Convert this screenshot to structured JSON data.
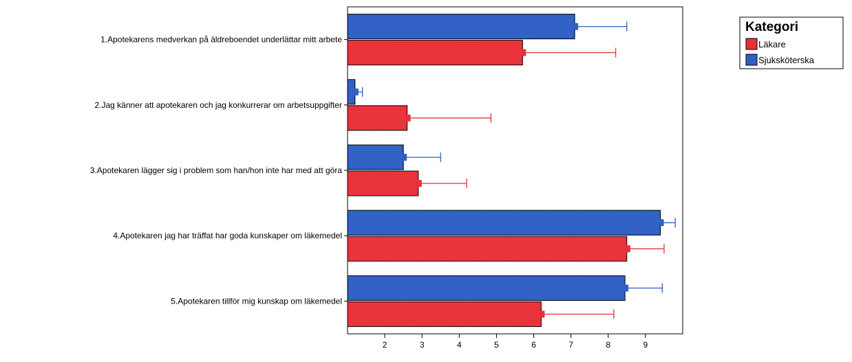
{
  "chart_data": {
    "type": "bar",
    "orientation": "horizontal",
    "categories": [
      "1.Apotekarens medverkan på äldreboendet underlättar mitt arbete",
      "2.Jag känner att apotekaren och jag konkurrerar om arbetsuppgifter",
      "3.Apotekaren lägger sig i problem som han/hon inte har med att göra",
      "4.Apotekaren jag har träffat har goda kunskaper om läkemedel",
      "5.Apotekaren tillför mig kunskap om läkemedel"
    ],
    "series": [
      {
        "name": "Sjuksköterska",
        "color": "#2f5fc2",
        "values": [
          7.1,
          1.2,
          2.5,
          9.4,
          8.45
        ],
        "error_upper": [
          8.5,
          1.4,
          3.5,
          9.8,
          9.45
        ]
      },
      {
        "name": "Läkare",
        "color": "#e8303a",
        "values": [
          5.7,
          2.6,
          2.9,
          8.5,
          6.2
        ],
        "error_upper": [
          8.2,
          4.85,
          4.2,
          9.5,
          8.15
        ]
      }
    ],
    "xlim": [
      1,
      10
    ],
    "x_ticks": [
      "2",
      "3",
      "4",
      "5",
      "6",
      "7",
      "8",
      "9"
    ],
    "grid": false,
    "legend": {
      "title": "Kategori",
      "entries": [
        "Läkare",
        "Sjuksköterska"
      ],
      "position": "top-right"
    }
  }
}
